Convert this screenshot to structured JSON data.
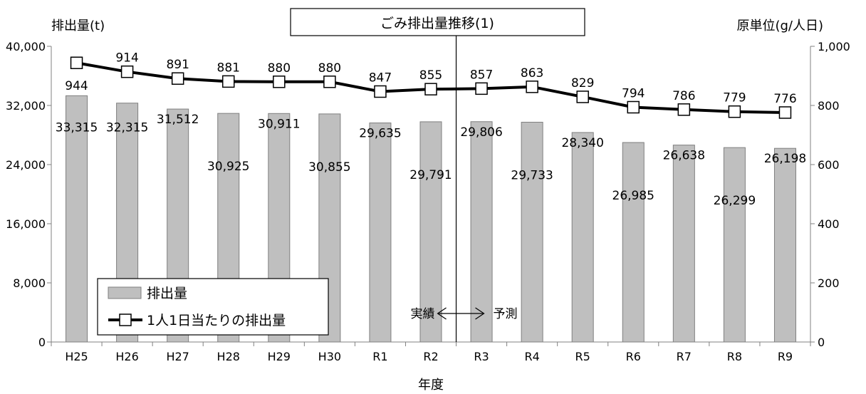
{
  "chart_data": {
    "type": "bar",
    "title": "ごみ排出量推移(1)",
    "xlabel": "年度",
    "ylabel_left": "排出量(t)",
    "ylabel_right": "原単位(g/人日)",
    "categories": [
      "H25",
      "H26",
      "H27",
      "H28",
      "H29",
      "H30",
      "R1",
      "R2",
      "R3",
      "R4",
      "R5",
      "R6",
      "R7",
      "R8",
      "R9"
    ],
    "ylim_left": [
      0,
      40000
    ],
    "ylim_right": [
      0,
      1000
    ],
    "yticks_left": [
      "0",
      "8,000",
      "16,000",
      "24,000",
      "32,000",
      "40,000"
    ],
    "yticks_right": [
      "0",
      "200",
      "400",
      "600",
      "800",
      "1,000"
    ],
    "grid": false,
    "legend_position": "bottom-left",
    "series": [
      {
        "name": "排出量",
        "type": "bar",
        "axis": "left",
        "color": "#bfbfbf",
        "values": [
          33315,
          32315,
          31512,
          30925,
          30911,
          30855,
          29635,
          29791,
          29806,
          29733,
          28340,
          26985,
          26638,
          26299,
          26198
        ],
        "labels": [
          "33,315",
          "32,315",
          "31,512",
          "30,925",
          "30,911",
          "30,855",
          "29,635",
          "29,791",
          "29,806",
          "29,733",
          "28,340",
          "26,985",
          "26,638",
          "26,299",
          "26,198"
        ]
      },
      {
        "name": "1人1日当たりの排出量",
        "type": "line",
        "axis": "right",
        "color": "#000000",
        "marker": "square-hollow",
        "values": [
          944,
          914,
          891,
          881,
          880,
          880,
          847,
          855,
          857,
          863,
          829,
          794,
          786,
          779,
          776
        ],
        "labels": [
          "944",
          "914",
          "891",
          "881",
          "880",
          "880",
          "847",
          "855",
          "857",
          "863",
          "829",
          "794",
          "786",
          "779",
          "776"
        ]
      }
    ],
    "annotations": {
      "divider_after": "R2",
      "left_text": "実績",
      "right_text": "予測"
    }
  }
}
